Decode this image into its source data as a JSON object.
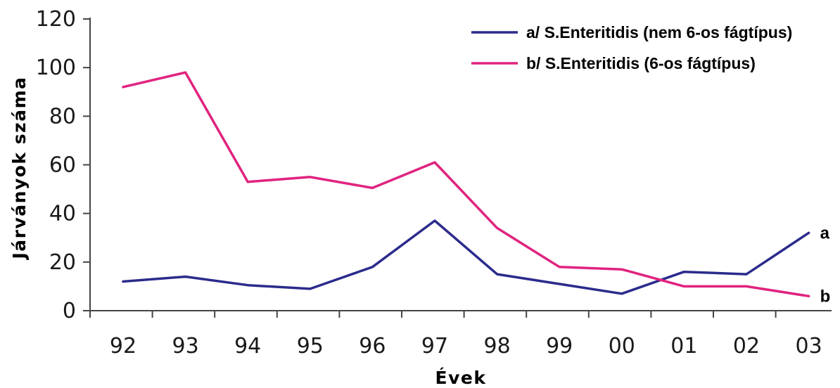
{
  "chart_data": {
    "type": "line",
    "xlabel": "Évek",
    "ylabel": "Járványok száma",
    "ylim": [
      0,
      120
    ],
    "yticks": [
      0,
      20,
      40,
      60,
      80,
      100,
      120
    ],
    "categories": [
      "92",
      "93",
      "94",
      "95",
      "96",
      "97",
      "98",
      "99",
      "00",
      "01",
      "02",
      "03"
    ],
    "series": [
      {
        "name": "a/ S.Enteritidis (nem 6-os fágtípus)",
        "end_label": "a",
        "color": "#2b2b8c",
        "values": [
          12,
          14,
          10.5,
          9,
          18,
          37,
          15,
          11,
          7,
          16,
          15,
          32
        ]
      },
      {
        "name": "b/ S.Enteritidis (6-os fágtípus)",
        "end_label": "b",
        "color": "#e0237f",
        "values": [
          92,
          98,
          53,
          55,
          50.5,
          61,
          34,
          18,
          17,
          10,
          10,
          6
        ]
      }
    ],
    "legend_position": "top-right",
    "grid": false
  }
}
